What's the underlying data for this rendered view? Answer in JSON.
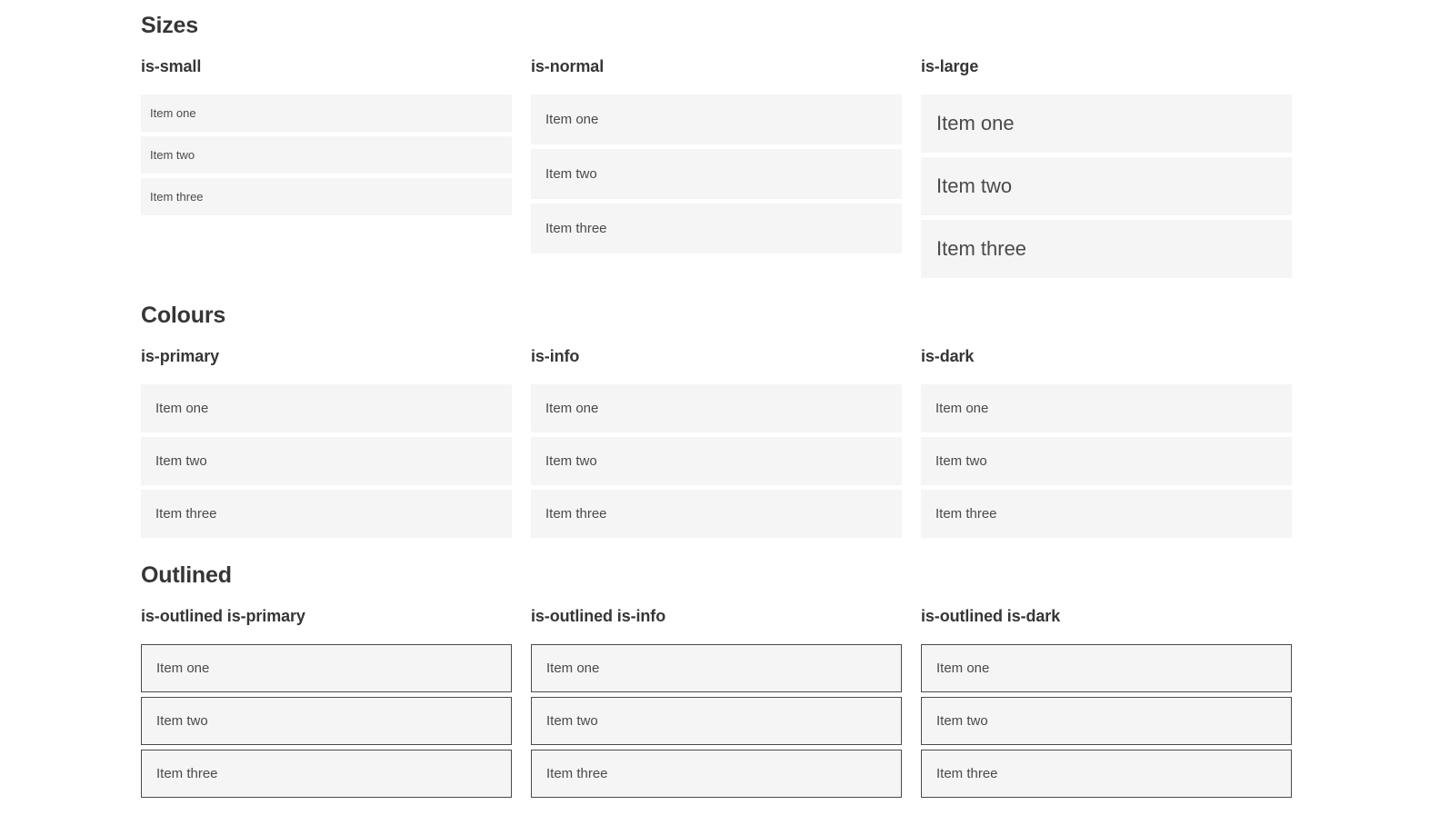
{
  "colors": {
    "primary": "#0cd0b2",
    "info": "#3498db",
    "dark": "#363636",
    "item_background": "#f5f5f5",
    "item_text": "#4a4a4a",
    "heading_text": "#363636",
    "page_background": "#ffffff"
  },
  "sections": [
    {
      "title": "Sizes",
      "columns": [
        {
          "label": "is-small",
          "variant": "size-small",
          "items": [
            "Item one",
            "Item two",
            "Item three"
          ]
        },
        {
          "label": "is-normal",
          "variant": "size-normal",
          "items": [
            "Item one",
            "Item two",
            "Item three"
          ]
        },
        {
          "label": "is-large",
          "variant": "size-large",
          "items": [
            "Item one",
            "Item two",
            "Item three"
          ]
        }
      ]
    },
    {
      "title": "Colours",
      "columns": [
        {
          "label": "is-primary",
          "variant": "color-primary",
          "items": [
            "Item one",
            "Item two",
            "Item three"
          ]
        },
        {
          "label": "is-info",
          "variant": "color-info",
          "items": [
            "Item one",
            "Item two",
            "Item three"
          ]
        },
        {
          "label": "is-dark",
          "variant": "color-dark",
          "items": [
            "Item one",
            "Item two",
            "Item three"
          ]
        }
      ]
    },
    {
      "title": "Outlined",
      "columns": [
        {
          "label": "is-outlined is-primary",
          "variant": "outlined-primary",
          "items": [
            "Item one",
            "Item two",
            "Item three"
          ]
        },
        {
          "label": "is-outlined is-info",
          "variant": "outlined-info",
          "items": [
            "Item one",
            "Item two",
            "Item three"
          ]
        },
        {
          "label": "is-outlined is-dark",
          "variant": "outlined-dark",
          "items": [
            "Item one",
            "Item two",
            "Item three"
          ]
        }
      ]
    }
  ]
}
